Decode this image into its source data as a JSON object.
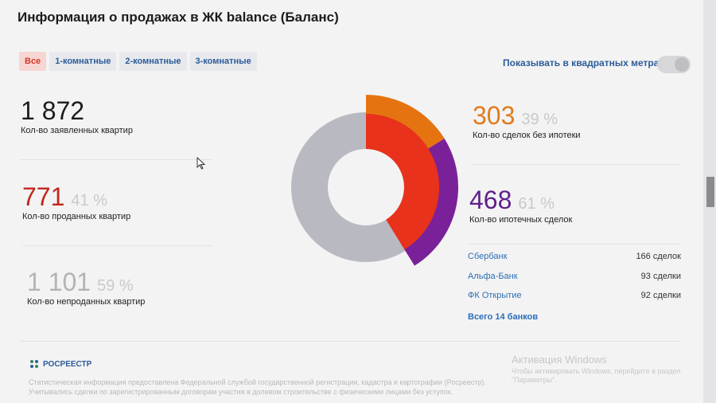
{
  "page": {
    "title": "Информация о продажах в ЖК balance (Баланс)"
  },
  "tabs": [
    "Все",
    "1-комнатные",
    "2-комнатные",
    "3-комнатные"
  ],
  "settings": {
    "sqm_label": "Показывать в квадратных метрах",
    "sqm_enabled": false
  },
  "stats": {
    "declared": {
      "value": "1 872",
      "label": "Кол-во заявленных квартир"
    },
    "sold": {
      "value": "771",
      "percent": "41 %",
      "label": "Кол-во проданных квартир"
    },
    "unsold": {
      "value": "1 101",
      "percent": "59 %",
      "label": "Кол-во непроданных квартир"
    },
    "no_mortgage": {
      "value": "303",
      "percent": "39 %",
      "label": "Кол-во сделок без ипотеки"
    },
    "mortgage": {
      "value": "468",
      "percent": "61 %",
      "label": "Кол-во ипотечных сделок"
    }
  },
  "banks": [
    {
      "name": "Сбербанк",
      "deals": "166 сделок"
    },
    {
      "name": "Альфа-Банк",
      "deals": "93 сделки"
    },
    {
      "name": "ФК Открытие",
      "deals": "92 сделки"
    }
  ],
  "banks_total": "Всего 14 банков",
  "chart_data": {
    "type": "pie",
    "inner_ring": [
      {
        "label": "Кол-во проданных квартир",
        "value": 771,
        "color": "#e8321c"
      },
      {
        "label": "Кол-во непроданных квартир",
        "value": 1101,
        "color": "#b9b9c2"
      }
    ],
    "outer_ring": [
      {
        "label": "Кол-во сделок без ипотеки",
        "value": 303,
        "color": "#e57410"
      },
      {
        "label": "Кол-во ипотечных сделок",
        "value": 468,
        "color": "#7a2199"
      }
    ]
  },
  "footer": {
    "brand": "РОСРЕЕСТР",
    "note": "Статистическая информация предоставлена Федеральной службой государственной регистрации, кадастра и картографии (Росреестр). Учитывались сделки по зарегистрированным договорам участия в долевом строительстве с физическими лицами без уступок."
  },
  "watermark": {
    "title": "Активация Windows",
    "text": "Чтобы активировать Windows, перейдите в раздел \"Параметры\"."
  },
  "colors": {
    "accent": "#2c6fb8",
    "sold": "#c0271c",
    "unsold": "#b3b3b8",
    "no_mortgage": "#e07b1e",
    "mortgage": "#5f1f8a"
  }
}
